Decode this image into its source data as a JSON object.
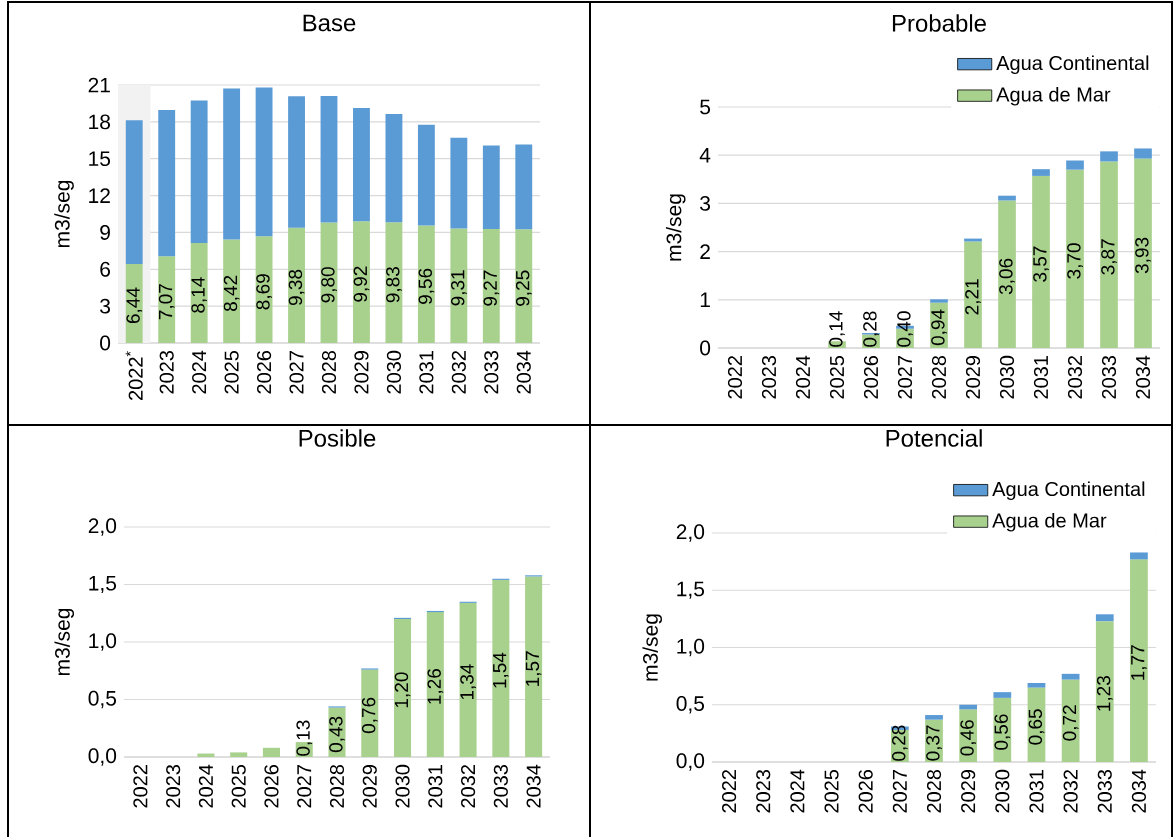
{
  "chart_data": [
    {
      "type": "bar",
      "title": "Base",
      "ylabel": "m3/seg",
      "stacked": true,
      "grid": "y",
      "categories": [
        "2022$^{*}$",
        "2023",
        "2024",
        "2025",
        "2026",
        "2027",
        "2028",
        "2029",
        "2030",
        "2031",
        "2032",
        "2033",
        "2034"
      ],
      "series": [
        {
          "color": "#a9d18e",
          "values": [
            6.44,
            7.07,
            8.14,
            8.42,
            8.69,
            9.38,
            9.8,
            9.92,
            9.83,
            9.56,
            9.31,
            9.27,
            9.25
          ],
          "value_labels": [
            "6,44",
            "7,07",
            "8,14",
            "8,42",
            "8,69",
            "9,38",
            "9,80",
            "9,92",
            "9,83",
            "9,56",
            "9,31",
            "9,27",
            "9,25"
          ]
        },
        {
          "color": "#5b9bd5",
          "values": [
            11.7,
            11.9,
            11.6,
            12.3,
            12.1,
            10.7,
            10.3,
            9.2,
            8.8,
            8.2,
            7.4,
            6.8,
            6.9
          ]
        }
      ],
      "ylim": [
        0,
        21
      ],
      "yticks": [
        0,
        3,
        6,
        9,
        12,
        15,
        18,
        21
      ],
      "bands": [
        {
          "axis": "x",
          "from": "2022$^{*}$",
          "to": "2022$^{*}$",
          "color": "#f2f2f2"
        }
      ]
    },
    {
      "type": "bar",
      "title": "Probable",
      "ylabel": "m3/seg",
      "stacked": true,
      "grid": "y",
      "legend": "top right",
      "categories": [
        "2022",
        "2023",
        "2024",
        "2025",
        "2026",
        "2027",
        "2028",
        "2029",
        "2030",
        "2031",
        "2032",
        "2033",
        "2034"
      ],
      "series": [
        {
          "name": "Agua de Mar",
          "color": "#a9d18e",
          "values": [
            null,
            null,
            null,
            0.14,
            0.28,
            0.4,
            0.94,
            2.21,
            3.06,
            3.57,
            3.7,
            3.87,
            3.93
          ],
          "value_labels": [
            null,
            null,
            null,
            "0,14",
            "0,28",
            "0,40",
            "0,94",
            "2,21",
            "3,06",
            "3,57",
            "3,70",
            "3,87",
            "3,93"
          ]
        },
        {
          "name": "Agua Continental",
          "color": "#5b9bd5",
          "values": [
            null,
            null,
            null,
            null,
            0.03,
            0.06,
            0.07,
            0.06,
            0.1,
            0.14,
            0.19,
            0.21,
            0.21
          ]
        }
      ],
      "ylim": [
        0,
        5
      ],
      "yticks": [
        0,
        1,
        2,
        3,
        4,
        5
      ]
    },
    {
      "type": "bar",
      "title": "Posible",
      "ylabel": "m3/seg",
      "stacked": true,
      "grid": "y",
      "categories": [
        "2022",
        "2023",
        "2024",
        "2025",
        "2026",
        "2027",
        "2028",
        "2029",
        "2030",
        "2031",
        "2032",
        "2033",
        "2034"
      ],
      "series": [
        {
          "color": "#a9d18e",
          "values": [
            null,
            null,
            0.03,
            0.04,
            0.08,
            0.13,
            0.43,
            0.76,
            1.2,
            1.26,
            1.34,
            1.54,
            1.57
          ],
          "value_labels": [
            null,
            null,
            null,
            null,
            null,
            "0,13",
            "0,43",
            "0,76",
            "1,20",
            "1,26",
            "1,34",
            "1,54",
            "1,57"
          ]
        },
        {
          "color": "#5b9bd5",
          "values": [
            null,
            null,
            null,
            null,
            null,
            null,
            0.01,
            0.01,
            0.01,
            0.01,
            0.01,
            0.01,
            0.01
          ]
        }
      ],
      "ylim": [
        0,
        2
      ],
      "yticks": [
        {
          "value": 0,
          "label": "0,0"
        },
        {
          "value": 0.5,
          "label": "0,5"
        },
        {
          "value": 1,
          "label": "1,0"
        },
        {
          "value": 1.5,
          "label": "1,5"
        },
        {
          "value": 2,
          "label": "2,0"
        }
      ]
    },
    {
      "type": "bar",
      "title": "Potencial",
      "ylabel": "m3/seg",
      "stacked": true,
      "grid": "y",
      "legend": "top right",
      "categories": [
        "2022",
        "2023",
        "2024",
        "2025",
        "2026",
        "2027",
        "2028",
        "2029",
        "2030",
        "2031",
        "2032",
        "2033",
        "2034"
      ],
      "series": [
        {
          "name": "Agua de Mar",
          "color": "#a9d18e",
          "values": [
            null,
            null,
            null,
            null,
            null,
            0.28,
            0.37,
            0.46,
            0.56,
            0.65,
            0.72,
            1.23,
            1.77
          ],
          "value_labels": [
            null,
            null,
            null,
            null,
            null,
            "0,28",
            "0,37",
            "0,46",
            "0,56",
            "0,65",
            "0,72",
            "1,23",
            "1,77"
          ]
        },
        {
          "name": "Agua Continental",
          "color": "#5b9bd5",
          "values": [
            null,
            null,
            null,
            null,
            null,
            0.03,
            0.04,
            0.04,
            0.05,
            0.04,
            0.05,
            0.06,
            0.06
          ]
        }
      ],
      "ylim": [
        0,
        2
      ],
      "yticks": [
        {
          "value": 0,
          "label": "0,0"
        },
        {
          "value": 0.5,
          "label": "0,5"
        },
        {
          "value": 1,
          "label": "1,0"
        },
        {
          "value": 1.5,
          "label": "1,5"
        },
        {
          "value": 2,
          "label": "2,0"
        }
      ]
    }
  ]
}
